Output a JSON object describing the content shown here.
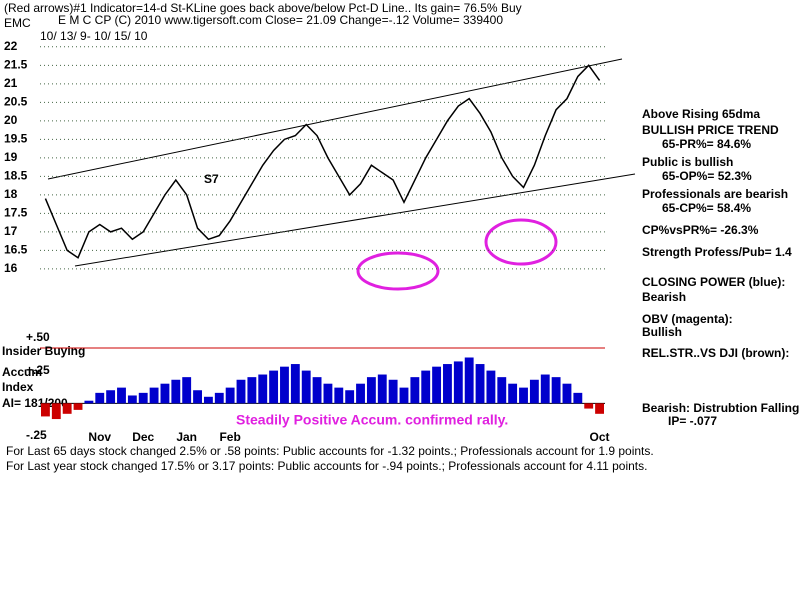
{
  "header": [
    "(Red arrows)#1 Indicator=14-d St-KLine goes back above/below Pct-D Line.. Its gain= 76.5% Buy",
    "EMC",
    "E M C CP    (C) 2010 www.tigersoft.com    Close=  21.09  Change=-.12 Volume= 339400",
    "10/ 13/ 9- 10/ 15/ 10"
  ],
  "notes": [
    "Above Rising 65dma",
    "BULLISH PRICE TREND",
    "65-PR%= 84.6%",
    "Public is bullish",
    "65-OP%= 52.3%",
    "Professionals are bearish",
    "65-CP%= 58.4%",
    "CP%vsPR%= -26.3%",
    "Strength Profess/Pub= 1.4",
    "CLOSING POWER (blue):",
    "Bearish",
    "OBV (magenta):",
    "Bullish",
    "REL.STR..VS DJI (brown):",
    "Bearish: Distrubtion Falling.",
    "IP= -.077"
  ],
  "panel_labels": [
    "Insider Buying",
    "Accum",
    "Index",
    "AI= 181/200",
    "S7"
  ],
  "annotation": "Steadily Positive Accum. confirmed rally.",
  "footer": [
    "For Last 65 days stock changed  2.5% or  .58 points:  Public accounts for -1.32 points.;  Professionals account for  1.9 points.",
    "For Last year stock changed  17.5% or  3.17 points:  Public accounts for -.94 points.;  Professionals account for  4.11 points."
  ],
  "chart_data": [
    {
      "type": "line",
      "categories": [
        null,
        null,
        null,
        null,
        null,
        "Nov",
        null,
        null,
        null,
        "Dec",
        null,
        null,
        null,
        "Jan",
        null,
        null,
        null,
        "Feb",
        null,
        null,
        null,
        null,
        null,
        null,
        null,
        null,
        null,
        null,
        null,
        null,
        null,
        null,
        null,
        null,
        null,
        null,
        null,
        null,
        null,
        null,
        null,
        null,
        null,
        null,
        null,
        null,
        null,
        null,
        null,
        null,
        null,
        "Oct"
      ],
      "series": [
        {
          "color": "#000000",
          "values": [
            17.9,
            17.2,
            16.5,
            16.3,
            17.0,
            17.2,
            17.0,
            17.1,
            16.8,
            17.0,
            17.5,
            18.0,
            18.4,
            18.0,
            17.1,
            16.8,
            16.9,
            17.3,
            17.8,
            18.3,
            18.8,
            19.2,
            19.5,
            19.6,
            19.9,
            19.6,
            19.0,
            18.5,
            18.0,
            18.3,
            18.8,
            18.6,
            18.4,
            17.8,
            18.4,
            19.0,
            19.5,
            20.0,
            20.4,
            20.6,
            20.2,
            19.7,
            19.0,
            18.5,
            18.2,
            18.8,
            19.6,
            20.3,
            20.6,
            21.2,
            21.5,
            21.09
          ]
        }
      ],
      "ylim": [
        15.7,
        22.4
      ],
      "yticks": [
        16,
        16.5,
        17,
        17.5,
        18,
        18.5,
        19,
        19.5,
        20,
        20.5,
        21,
        21.5,
        22
      ],
      "grid": true
    },
    {
      "type": "bar",
      "color": "#0000cc",
      "negative_color": "#cc0000",
      "values": [
        -0.1,
        -0.12,
        -0.08,
        -0.05,
        0.02,
        0.08,
        0.1,
        0.12,
        0.06,
        0.08,
        0.12,
        0.15,
        0.18,
        0.2,
        0.1,
        0.05,
        0.08,
        0.12,
        0.18,
        0.2,
        0.22,
        0.25,
        0.28,
        0.3,
        0.25,
        0.2,
        0.15,
        0.12,
        0.1,
        0.15,
        0.2,
        0.22,
        0.18,
        0.12,
        0.2,
        0.25,
        0.28,
        0.3,
        0.32,
        0.35,
        0.3,
        0.25,
        0.2,
        0.15,
        0.12,
        0.18,
        0.22,
        0.2,
        0.15,
        0.08,
        -0.04,
        -0.08
      ],
      "ylim": [
        -0.28,
        0.56
      ],
      "yticks": [
        {
          "value": 0.5,
          "label": "+.50"
        },
        {
          "value": 0.25,
          "label": "+.25"
        },
        {
          "value": -0.25,
          "label": "-.25"
        }
      ]
    }
  ]
}
